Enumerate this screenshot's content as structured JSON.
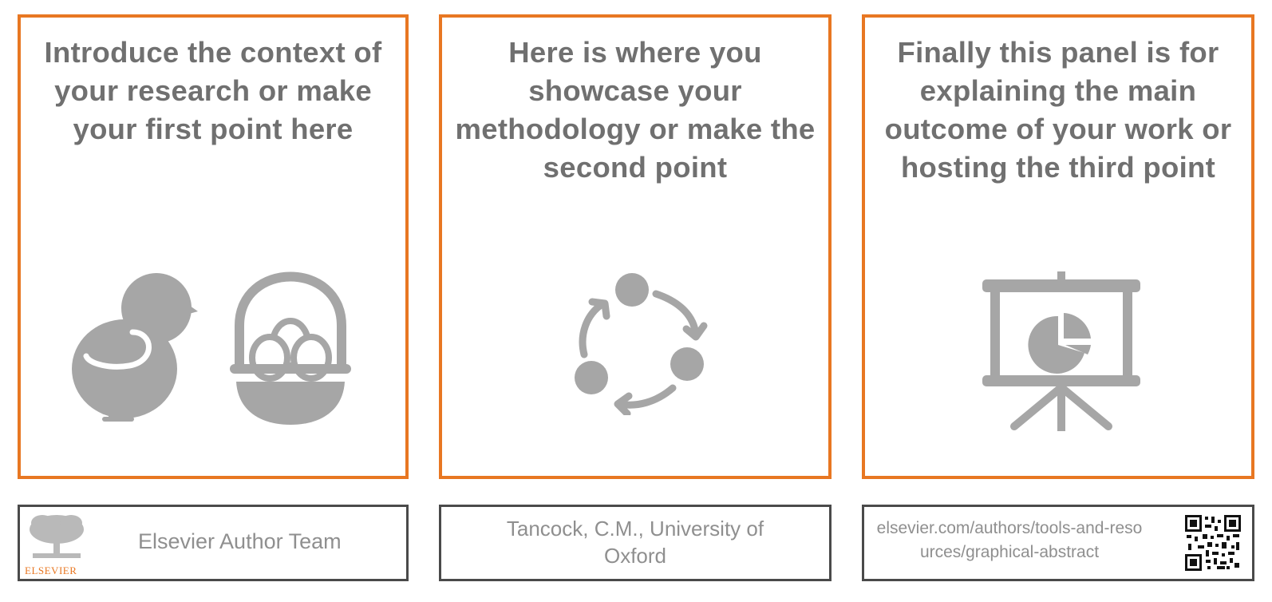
{
  "panels": [
    {
      "text": "Introduce the context of your research or make your first point here",
      "icons": [
        "chick-icon",
        "egg-basket-icon"
      ]
    },
    {
      "text": "Here is where you showcase your methodology or make the second point",
      "icons": [
        "cycle-icon"
      ]
    },
    {
      "text": "Finally this panel is for explaining the main outcome of your work or hosting the third point",
      "icons": [
        "presentation-pie-chart-icon"
      ]
    }
  ],
  "footers": [
    {
      "logo_text": "ELSEVIER",
      "logo_icon": "elsevier-tree-logo",
      "text": "Elsevier Author Team"
    },
    {
      "text": "Tancock, C.M., University of Oxford"
    },
    {
      "text": "elsevier.com/authors/tools-and-resources/graphical-abstract",
      "qr_icon": "qr-code-icon"
    }
  ],
  "colors": {
    "accent": "#e87722",
    "icon": "#a6a6a6",
    "heading": "#707070",
    "footer_text": "#8f8f8f",
    "footer_border": "#4a4a4a"
  }
}
